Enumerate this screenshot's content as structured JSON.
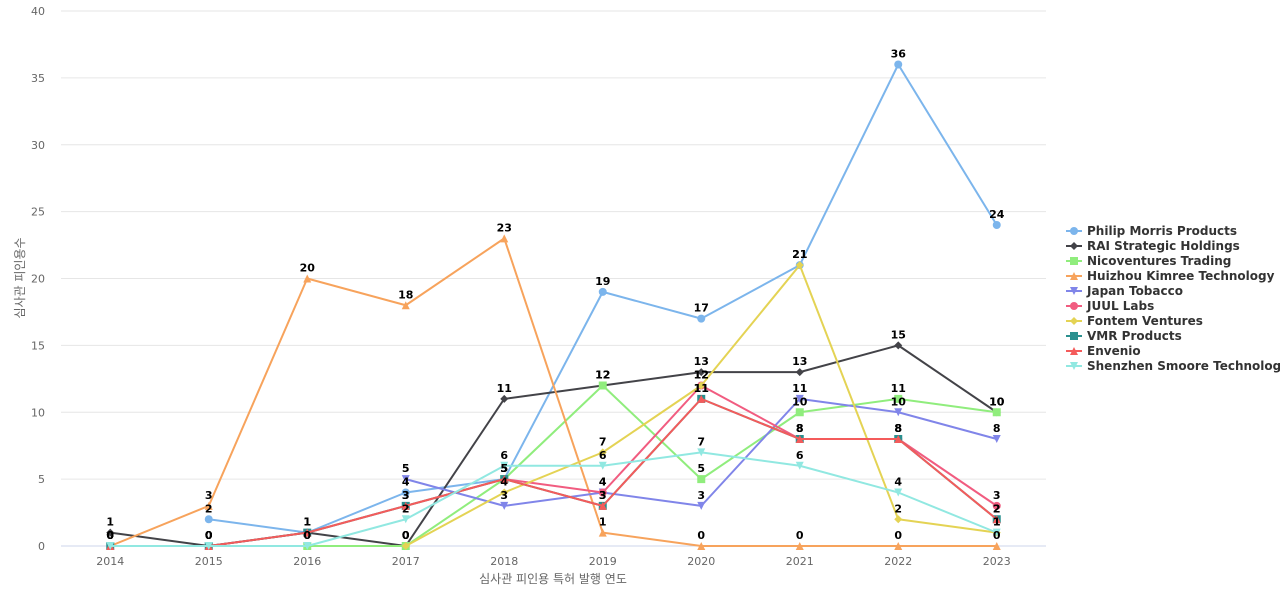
{
  "chart_data": {
    "type": "line",
    "title": "",
    "xlabel": "심사관 피인용 특허 발행 연도",
    "ylabel": "심사관 피인용수",
    "ylim": [
      0,
      40
    ],
    "yticks": [
      0,
      5,
      10,
      15,
      20,
      25,
      30,
      35,
      40
    ],
    "grid": true,
    "legend_position": "right",
    "categories": [
      "2014",
      "2015",
      "2016",
      "2017",
      "2018",
      "2019",
      "2020",
      "2021",
      "2022",
      "2023"
    ],
    "series": [
      {
        "name": "Philip Morris Products",
        "color": "#7cb5ec",
        "marker": "circle",
        "values": [
          null,
          2,
          1,
          4,
          5,
          19,
          17,
          21,
          36,
          24
        ]
      },
      {
        "name": "RAI Strategic Holdings",
        "color": "#434348",
        "marker": "diamond",
        "values": [
          1,
          0,
          1,
          0,
          11,
          12,
          13,
          13,
          15,
          10
        ]
      },
      {
        "name": "Nicoventures Trading",
        "color": "#90ed7d",
        "marker": "square",
        "values": [
          null,
          null,
          0,
          0,
          5,
          12,
          5,
          10,
          11,
          10
        ]
      },
      {
        "name": "Huizhou Kimree Technology",
        "color": "#f7a35c",
        "marker": "triangle",
        "values": [
          0,
          3,
          20,
          18,
          23,
          1,
          0,
          0,
          0,
          0
        ]
      },
      {
        "name": "Japan Tobacco",
        "color": "#8085e9",
        "marker": "triangle-down",
        "values": [
          null,
          null,
          null,
          5,
          3,
          4,
          3,
          11,
          10,
          8
        ]
      },
      {
        "name": "JUUL Labs",
        "color": "#f15c80",
        "marker": "circle",
        "values": [
          null,
          null,
          null,
          null,
          5,
          4,
          12,
          8,
          8,
          3
        ]
      },
      {
        "name": "Fontem Ventures",
        "color": "#e4d354",
        "marker": "diamond",
        "values": [
          null,
          null,
          null,
          0,
          4,
          7,
          12,
          21,
          2,
          1
        ]
      },
      {
        "name": "VMR Products",
        "color": "#2b908f",
        "marker": "square",
        "values": [
          0,
          0,
          1,
          3,
          5,
          3,
          11,
          8,
          8,
          2
        ]
      },
      {
        "name": "Envenio",
        "color": "#f45b5b",
        "marker": "triangle",
        "values": [
          0,
          0,
          1,
          3,
          5,
          3,
          11,
          8,
          8,
          2
        ]
      },
      {
        "name": "Shenzhen Smoore Technology",
        "color": "#91e8e1",
        "marker": "triangle-down",
        "values": [
          0,
          0,
          0,
          2,
          6,
          6,
          7,
          6,
          4,
          1
        ]
      }
    ]
  }
}
